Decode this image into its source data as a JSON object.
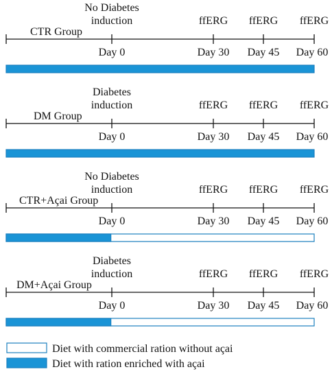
{
  "colors": {
    "enriched": "#1a94d6",
    "commercial": "#ffffff",
    "bar_border": "#1a7fbf",
    "line": "#111111"
  },
  "groups": [
    {
      "name": "CTR Group",
      "induction": [
        "No Diabetes",
        "induction"
      ],
      "ticks": [
        {
          "day": "Day 0",
          "event": ""
        },
        {
          "day": "Day 30",
          "event": "ffERG"
        },
        {
          "day": "Day 45",
          "event": "ffERG"
        },
        {
          "day": "Day 60",
          "event": "ffERG"
        }
      ],
      "diet_bar": {
        "enriched_fraction": 1.0
      }
    },
    {
      "name": "DM Group",
      "induction": [
        "Diabetes",
        "induction"
      ],
      "ticks": [
        {
          "day": "Day 0",
          "event": ""
        },
        {
          "day": "Day 30",
          "event": "ffERG"
        },
        {
          "day": "Day 45",
          "event": "ffERG"
        },
        {
          "day": "Day 60",
          "event": "ffERG"
        }
      ],
      "diet_bar": {
        "enriched_fraction": 1.0
      }
    },
    {
      "name": "CTR+Açai Group",
      "induction": [
        "No Diabetes",
        "induction"
      ],
      "ticks": [
        {
          "day": "Day 0",
          "event": ""
        },
        {
          "day": "Day 30",
          "event": "ffERG"
        },
        {
          "day": "Day 45",
          "event": "ffERG"
        },
        {
          "day": "Day 60",
          "event": "ffERG"
        }
      ],
      "diet_bar": {
        "enriched_fraction": 0.34
      }
    },
    {
      "name": "DM+Açai Group",
      "induction": [
        "Diabetes",
        "induction"
      ],
      "ticks": [
        {
          "day": "Day 0",
          "event": ""
        },
        {
          "day": "Day 30",
          "event": "ffERG"
        },
        {
          "day": "Day 45",
          "event": "ffERG"
        },
        {
          "day": "Day 60",
          "event": "ffERG"
        }
      ],
      "diet_bar": {
        "enriched_fraction": 0.34
      }
    }
  ],
  "legend": [
    {
      "label": "Diet with commercial ration without açai",
      "color": "#ffffff"
    },
    {
      "label": "Diet with ration enriched with açai",
      "color": "#1a94d6"
    }
  ]
}
